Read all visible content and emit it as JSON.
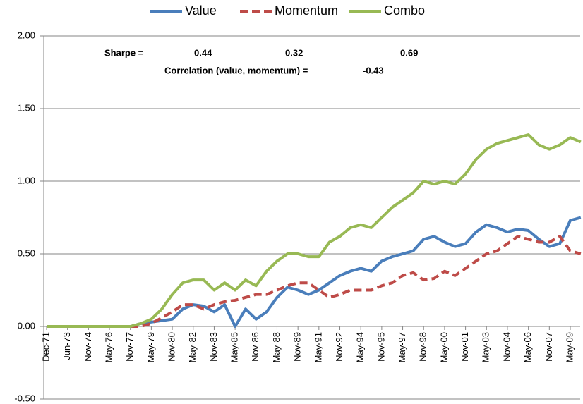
{
  "chart_data": {
    "type": "line",
    "categories": [
      "Dec-71",
      null,
      "Jun-73",
      null,
      "Nov-74",
      null,
      "May-76",
      null,
      "Nov-77",
      null,
      "May-79",
      null,
      "Nov-80",
      null,
      "May-82",
      null,
      "Nov-83",
      null,
      "May-85",
      null,
      "Nov-86",
      null,
      "May-88",
      null,
      "Nov-89",
      null,
      "May-91",
      null,
      "Nov-92",
      null,
      "May-94",
      null,
      "Nov-95",
      null,
      "May-97",
      null,
      "Nov-98",
      null,
      "May-00",
      null,
      "Nov-01",
      null,
      "May-03",
      null,
      "Nov-04",
      null,
      "May-06",
      null,
      "Nov-07",
      null,
      "May-09",
      null
    ],
    "series": [
      {
        "name": "Value",
        "color": "#4a7ebb",
        "dash": false,
        "values": [
          0,
          0,
          0,
          0,
          0,
          0,
          0,
          0,
          0,
          0.02,
          0.03,
          0.04,
          0.05,
          0.12,
          0.15,
          0.14,
          0.1,
          0.15,
          0.0,
          0.12,
          0.05,
          0.1,
          0.2,
          0.27,
          0.25,
          0.22,
          0.25,
          0.3,
          0.35,
          0.38,
          0.4,
          0.38,
          0.45,
          0.48,
          0.5,
          0.52,
          0.6,
          0.62,
          0.58,
          0.55,
          0.57,
          0.65,
          0.7,
          0.68,
          0.65,
          0.67,
          0.66,
          0.6,
          0.55,
          0.57,
          0.73,
          0.75
        ]
      },
      {
        "name": "Momentum",
        "color": "#be4b48",
        "dash": true,
        "values": [
          0,
          0,
          0,
          0,
          0,
          0,
          0,
          0,
          0,
          0.0,
          0.02,
          0.06,
          0.1,
          0.15,
          0.15,
          0.12,
          0.15,
          0.17,
          0.18,
          0.2,
          0.22,
          0.22,
          0.25,
          0.28,
          0.3,
          0.3,
          0.25,
          0.2,
          0.22,
          0.25,
          0.25,
          0.25,
          0.28,
          0.3,
          0.35,
          0.37,
          0.32,
          0.33,
          0.38,
          0.35,
          0.4,
          0.45,
          0.5,
          0.52,
          0.57,
          0.62,
          0.6,
          0.58,
          0.58,
          0.62,
          0.52,
          0.5
        ]
      },
      {
        "name": "Combo",
        "color": "#98b954",
        "dash": false,
        "values": [
          0,
          0,
          0,
          0,
          0,
          0,
          0,
          0,
          0,
          0.02,
          0.05,
          0.12,
          0.22,
          0.3,
          0.32,
          0.32,
          0.25,
          0.3,
          0.25,
          0.32,
          0.28,
          0.38,
          0.45,
          0.5,
          0.5,
          0.48,
          0.48,
          0.58,
          0.62,
          0.68,
          0.7,
          0.68,
          0.75,
          0.82,
          0.87,
          0.92,
          1.0,
          0.98,
          1.0,
          0.98,
          1.05,
          1.15,
          1.22,
          1.26,
          1.28,
          1.3,
          1.32,
          1.25,
          1.22,
          1.25,
          1.3,
          1.27
        ]
      }
    ],
    "ylim": [
      -0.5,
      2.0
    ],
    "yticks": [
      {
        "value": -0.5,
        "label": "-0.50"
      },
      {
        "value": 0,
        "label": "0.00"
      },
      {
        "value": 0.5,
        "label": "0.50"
      },
      {
        "value": 1,
        "label": "1.00"
      },
      {
        "value": 1.5,
        "label": "1.50"
      },
      {
        "value": 2,
        "label": "2.00"
      }
    ],
    "grid": true,
    "legend": "top",
    "annotations": [
      "Sharpe =",
      "0.44",
      "0.32",
      "0.69",
      "Correlation (value, momentum) =",
      "-0.43"
    ]
  }
}
